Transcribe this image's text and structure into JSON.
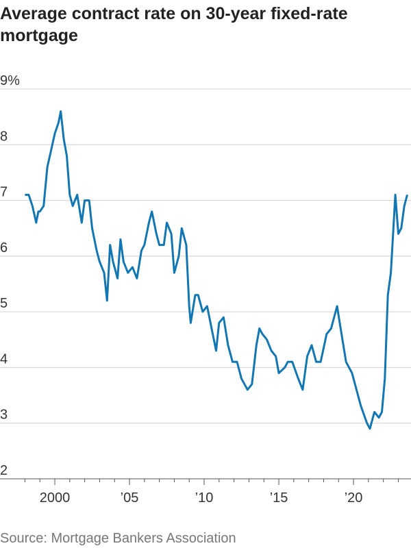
{
  "chart_data": {
    "type": "line",
    "title": "Average contract rate on 30-year fixed-rate mortgage",
    "source": "Source: Mortgage Bankers Association",
    "color": "#1176b2",
    "grid": true,
    "xlim": [
      1996.33,
      2023.85
    ],
    "ylim": [
      2,
      9
    ],
    "yticks": [
      2,
      3,
      4,
      5,
      6,
      7,
      8,
      {
        "value": 9,
        "label": "9%"
      }
    ],
    "xticks": [
      {
        "value": 2000,
        "label": "2000"
      },
      {
        "value": 2005,
        "label": "’05"
      },
      {
        "value": 2010,
        "label": "’10"
      },
      {
        "value": 2015,
        "label": "’15"
      },
      {
        "value": 2020,
        "label": "’20"
      }
    ],
    "xminor_ticks": [
      1998,
      1999,
      2001,
      2002,
      2003,
      2004,
      2006,
      2007,
      2008,
      2009,
      2011,
      2012,
      2013,
      2014,
      2016,
      2017,
      2018,
      2019,
      2021,
      2022,
      2023
    ],
    "x": [
      1998.0,
      1998.25,
      1998.5,
      1998.75,
      1998.9,
      1999.0,
      1999.25,
      1999.5,
      1999.75,
      2000.0,
      2000.25,
      2000.4,
      2000.6,
      2000.8,
      2001.0,
      2001.2,
      2001.5,
      2001.8,
      2002.0,
      2002.3,
      2002.5,
      2002.8,
      2003.0,
      2003.3,
      2003.5,
      2003.7,
      2003.9,
      2004.2,
      2004.4,
      2004.6,
      2004.9,
      2005.2,
      2005.5,
      2005.8,
      2006.0,
      2006.3,
      2006.5,
      2006.8,
      2007.0,
      2007.3,
      2007.5,
      2007.8,
      2008.0,
      2008.3,
      2008.5,
      2008.8,
      2009.0,
      2009.1,
      2009.4,
      2009.6,
      2009.9,
      2010.2,
      2010.5,
      2010.8,
      2011.0,
      2011.3,
      2011.6,
      2011.9,
      2012.2,
      2012.5,
      2012.9,
      2013.2,
      2013.5,
      2013.7,
      2013.9,
      2014.2,
      2014.5,
      2014.8,
      2015.0,
      2015.4,
      2015.6,
      2015.9,
      2016.3,
      2016.6,
      2016.9,
      2017.2,
      2017.5,
      2017.8,
      2018.2,
      2018.5,
      2018.9,
      2019.2,
      2019.5,
      2019.9,
      2020.2,
      2020.5,
      2020.9,
      2021.1,
      2021.4,
      2021.7,
      2021.9,
      2022.1,
      2022.3,
      2022.5,
      2022.8,
      2023.0,
      2023.2,
      2023.4,
      2023.6
    ],
    "values": [
      7.1,
      7.1,
      6.9,
      6.6,
      6.8,
      6.8,
      6.9,
      7.6,
      7.9,
      8.2,
      8.4,
      8.6,
      8.1,
      7.8,
      7.1,
      6.9,
      7.1,
      6.6,
      7.0,
      7.0,
      6.5,
      6.1,
      5.9,
      5.7,
      5.2,
      6.2,
      5.9,
      5.6,
      6.3,
      5.9,
      5.7,
      5.8,
      5.6,
      6.1,
      6.2,
      6.6,
      6.8,
      6.4,
      6.2,
      6.2,
      6.6,
      6.4,
      5.7,
      6.0,
      6.5,
      6.2,
      5.1,
      4.8,
      5.3,
      5.3,
      5.0,
      5.1,
      4.7,
      4.3,
      4.8,
      4.9,
      4.4,
      4.1,
      4.1,
      3.8,
      3.6,
      3.7,
      4.4,
      4.7,
      4.6,
      4.5,
      4.3,
      4.2,
      3.9,
      4.0,
      4.1,
      4.1,
      3.8,
      3.6,
      4.2,
      4.4,
      4.1,
      4.1,
      4.6,
      4.7,
      5.1,
      4.6,
      4.1,
      3.9,
      3.6,
      3.3,
      3.0,
      2.9,
      3.2,
      3.1,
      3.2,
      3.8,
      5.3,
      5.7,
      7.1,
      6.4,
      6.5,
      6.9,
      7.1
    ]
  }
}
